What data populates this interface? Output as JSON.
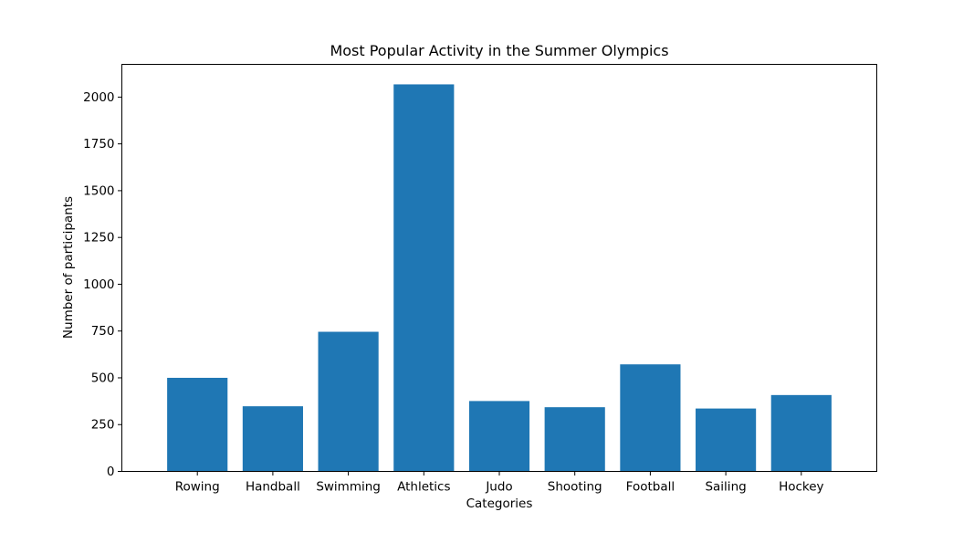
{
  "chart_data": {
    "type": "bar",
    "title": "Most Popular Activity in the Summer Olympics",
    "xlabel": "Categories",
    "ylabel": "Number of participants",
    "categories": [
      "Rowing",
      "Handball",
      "Swimming",
      "Athletics",
      "Judo",
      "Shooting",
      "Football",
      "Sailing",
      "Hockey"
    ],
    "values": [
      500,
      348,
      746,
      2068,
      376,
      343,
      572,
      336,
      408
    ],
    "ylim": [
      0,
      2175
    ],
    "yticks": [
      0,
      250,
      500,
      750,
      1000,
      1250,
      1500,
      1750,
      2000
    ],
    "grid": false,
    "bar_color": "#1f77b4"
  }
}
